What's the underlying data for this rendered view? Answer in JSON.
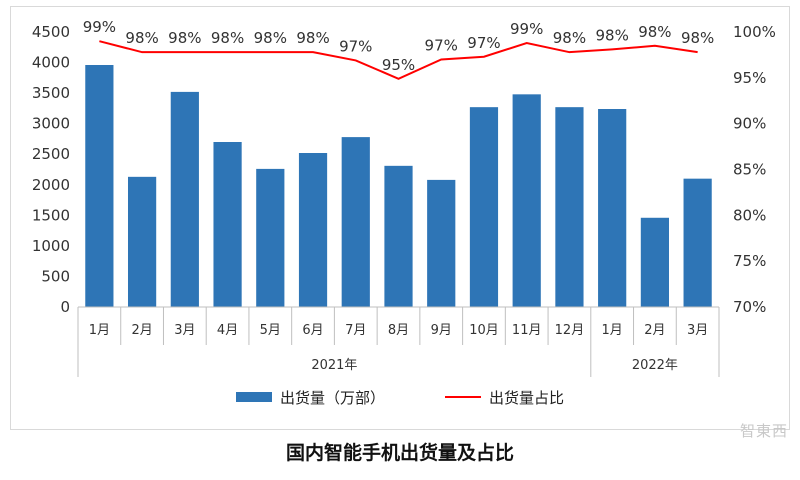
{
  "chart_data": {
    "type": "bar",
    "categories": [
      "1月",
      "2月",
      "3月",
      "4月",
      "5月",
      "6月",
      "7月",
      "8月",
      "9月",
      "10月",
      "11月",
      "12月",
      "1月",
      "2月",
      "3月"
    ],
    "year_groups": [
      {
        "label": "2021年",
        "span": 12
      },
      {
        "label": "2022年",
        "span": 3
      }
    ],
    "series": [
      {
        "name": "出货量（万部）",
        "kind": "bar",
        "axis": "left",
        "color": "#2e75b6",
        "values": [
          3960,
          2130,
          3520,
          2700,
          2260,
          2520,
          2780,
          2310,
          2080,
          3270,
          3480,
          3270,
          3240,
          1460,
          2100
        ]
      },
      {
        "name": "出货量占比",
        "kind": "line",
        "axis": "right",
        "color": "#ff0000",
        "values": [
          99,
          98,
          98,
          98,
          98,
          98,
          97,
          95,
          97,
          97,
          99,
          98,
          98,
          98,
          98
        ],
        "plot_values": [
          99.0,
          97.8,
          97.8,
          97.8,
          97.8,
          97.8,
          96.9,
          94.9,
          97.0,
          97.3,
          98.8,
          97.8,
          98.1,
          98.5,
          97.8
        ],
        "labels": [
          "99%",
          "98%",
          "98%",
          "98%",
          "98%",
          "98%",
          "97%",
          "95%",
          "97%",
          "97%",
          "99%",
          "98%",
          "98%",
          "98%",
          "98%"
        ]
      }
    ],
    "left_axis": {
      "min": 0,
      "max": 4500,
      "step": 500,
      "ticks": [
        "0",
        "500",
        "1000",
        "1500",
        "2000",
        "2500",
        "3000",
        "3500",
        "4000",
        "4500"
      ]
    },
    "right_axis": {
      "min": 70,
      "max": 100,
      "step": 5,
      "ticks": [
        "70%",
        "75%",
        "80%",
        "85%",
        "90%",
        "95%",
        "100%"
      ]
    },
    "grid": false,
    "legend_position": "bottom"
  },
  "caption": "国内智能手机出货量及占比",
  "watermark": "智東西"
}
